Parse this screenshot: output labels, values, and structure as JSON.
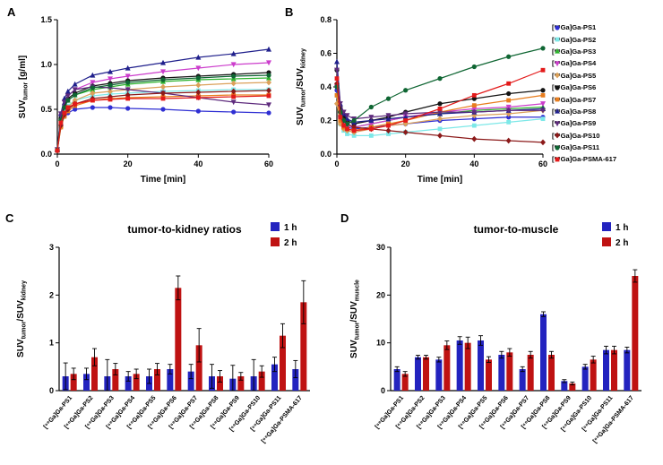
{
  "panel_labels": [
    "A",
    "B",
    "C",
    "D"
  ],
  "chart_data": [
    {
      "panel": "A",
      "type": "line",
      "xlabel": "Time [min]",
      "ylabel_parts": [
        {
          "t": "SUV"
        },
        {
          "t": "tumor",
          "sub": true
        },
        {
          "t": " [g/ml]"
        }
      ],
      "xlim": [
        0,
        60
      ],
      "ylim": [
        0,
        1.5
      ],
      "xticks": [
        0,
        20,
        40,
        60
      ],
      "yticks": [
        0,
        0.5,
        1.0,
        1.5
      ],
      "ydec": 1,
      "x": [
        0,
        1,
        2,
        3,
        5,
        10,
        15,
        20,
        30,
        40,
        50,
        60
      ],
      "series": [
        {
          "name": "[⁶⁸Ga]Ga-PS1",
          "color": "#2f2fd3",
          "marker": "circle",
          "values": [
            0.04,
            0.33,
            0.42,
            0.46,
            0.5,
            0.52,
            0.52,
            0.51,
            0.5,
            0.48,
            0.47,
            0.46
          ]
        },
        {
          "name": "[⁶⁸Ga]Ga-PS2",
          "color": "#7de8e8",
          "marker": "square",
          "values": [
            0.04,
            0.35,
            0.48,
            0.54,
            0.6,
            0.65,
            0.67,
            0.68,
            0.7,
            0.71,
            0.72,
            0.72
          ]
        },
        {
          "name": "[⁶⁸Ga]Ga-PS3",
          "color": "#2db32d",
          "marker": "triangle",
          "values": [
            0.05,
            0.4,
            0.54,
            0.6,
            0.66,
            0.72,
            0.75,
            0.78,
            0.81,
            0.83,
            0.84,
            0.85
          ]
        },
        {
          "name": "[⁶⁸Ga]Ga-PS4",
          "color": "#cc3dcc",
          "marker": "triangle-down",
          "values": [
            0.05,
            0.42,
            0.58,
            0.65,
            0.72,
            0.8,
            0.84,
            0.87,
            0.92,
            0.96,
            1.0,
            1.02
          ]
        },
        {
          "name": "[⁶⁸Ga]Ga-PS5",
          "color": "#dba15a",
          "marker": "diamond",
          "values": [
            0.04,
            0.3,
            0.45,
            0.52,
            0.6,
            0.68,
            0.7,
            0.72,
            0.75,
            0.77,
            0.79,
            0.8
          ]
        },
        {
          "name": "[⁶⁸Ga]Ga-PS6",
          "color": "#141414",
          "marker": "circle",
          "values": [
            0.05,
            0.4,
            0.55,
            0.62,
            0.68,
            0.76,
            0.79,
            0.82,
            0.85,
            0.87,
            0.89,
            0.91
          ]
        },
        {
          "name": "[⁶⁸Ga]Ga-PS7",
          "color": "#e87d1e",
          "marker": "square",
          "values": [
            0.04,
            0.3,
            0.42,
            0.48,
            0.54,
            0.6,
            0.62,
            0.63,
            0.64,
            0.65,
            0.66,
            0.66
          ]
        },
        {
          "name": "[⁶⁸Ga]Ga-PS8",
          "color": "#20208c",
          "marker": "triangle",
          "values": [
            0.05,
            0.45,
            0.62,
            0.7,
            0.78,
            0.88,
            0.92,
            0.96,
            1.02,
            1.08,
            1.12,
            1.17
          ]
        },
        {
          "name": "[⁶⁸Ga]Ga-PS9",
          "color": "#5e2b7d",
          "marker": "triangle-down",
          "values": [
            0.05,
            0.45,
            0.58,
            0.65,
            0.72,
            0.75,
            0.74,
            0.72,
            0.68,
            0.63,
            0.58,
            0.55
          ]
        },
        {
          "name": "[⁶⁸Ga]Ga-PS10",
          "color": "#8c1a1a",
          "marker": "diamond",
          "values": [
            0.04,
            0.32,
            0.44,
            0.5,
            0.56,
            0.62,
            0.64,
            0.66,
            0.68,
            0.69,
            0.7,
            0.71
          ]
        },
        {
          "name": "[⁶⁸Ga]Ga-PS11",
          "color": "#0f6633",
          "marker": "circle",
          "values": [
            0.05,
            0.38,
            0.52,
            0.6,
            0.66,
            0.74,
            0.77,
            0.8,
            0.83,
            0.85,
            0.87,
            0.88
          ]
        },
        {
          "name": "[⁶⁸Ga]Ga-PSMA-617",
          "color": "#e31a1a",
          "marker": "square",
          "values": [
            0.04,
            0.35,
            0.46,
            0.52,
            0.56,
            0.6,
            0.61,
            0.62,
            0.62,
            0.63,
            0.64,
            0.65
          ]
        }
      ]
    },
    {
      "panel": "B",
      "type": "line",
      "xlabel": "Time [min]",
      "ylabel_parts": [
        {
          "t": "SUV"
        },
        {
          "t": "tumor",
          "sub": true
        },
        {
          "t": "/SUV"
        },
        {
          "t": "kidney",
          "sub": true
        }
      ],
      "xlim": [
        0,
        60
      ],
      "ylim": [
        0,
        0.8
      ],
      "xticks": [
        0,
        20,
        40,
        60
      ],
      "yticks": [
        0,
        0.2,
        0.4,
        0.6,
        0.8
      ],
      "ydec": 1,
      "legend_position": "right",
      "x": [
        0,
        1,
        2,
        3,
        5,
        10,
        15,
        20,
        30,
        40,
        50,
        60
      ],
      "series": [
        {
          "name": "[⁶⁸Ga]Ga-PS1",
          "color": "#2f2fd3",
          "marker": "circle",
          "values": [
            0.38,
            0.22,
            0.18,
            0.16,
            0.15,
            0.16,
            0.17,
            0.18,
            0.2,
            0.21,
            0.22,
            0.22
          ]
        },
        {
          "name": "[⁶⁸Ga]Ga-PS2",
          "color": "#7de8e8",
          "marker": "square",
          "values": [
            0.35,
            0.18,
            0.14,
            0.12,
            0.11,
            0.11,
            0.12,
            0.13,
            0.15,
            0.17,
            0.19,
            0.21
          ]
        },
        {
          "name": "[⁶⁸Ga]Ga-PS3",
          "color": "#2db32d",
          "marker": "triangle",
          "values": [
            0.42,
            0.24,
            0.19,
            0.17,
            0.16,
            0.18,
            0.2,
            0.22,
            0.24,
            0.26,
            0.27,
            0.28
          ]
        },
        {
          "name": "[⁶⁸Ga]Ga-PS4",
          "color": "#cc3dcc",
          "marker": "triangle-down",
          "values": [
            0.4,
            0.22,
            0.18,
            0.17,
            0.16,
            0.18,
            0.2,
            0.22,
            0.25,
            0.27,
            0.28,
            0.3
          ]
        },
        {
          "name": "[⁶⁸Ga]Ga-PS5",
          "color": "#dba15a",
          "marker": "diamond",
          "values": [
            0.3,
            0.18,
            0.15,
            0.14,
            0.13,
            0.15,
            0.17,
            0.18,
            0.21,
            0.23,
            0.24,
            0.26
          ]
        },
        {
          "name": "[⁶⁸Ga]Ga-PS6",
          "color": "#141414",
          "marker": "circle",
          "values": [
            0.5,
            0.28,
            0.22,
            0.2,
            0.18,
            0.2,
            0.22,
            0.25,
            0.3,
            0.33,
            0.36,
            0.38
          ]
        },
        {
          "name": "[⁶⁸Ga]Ga-PS7",
          "color": "#e87d1e",
          "marker": "square",
          "values": [
            0.35,
            0.2,
            0.16,
            0.15,
            0.14,
            0.16,
            0.18,
            0.2,
            0.25,
            0.29,
            0.32,
            0.35
          ]
        },
        {
          "name": "[⁶⁸Ga]Ga-PS8",
          "color": "#20208c",
          "marker": "triangle",
          "values": [
            0.55,
            0.3,
            0.24,
            0.21,
            0.19,
            0.2,
            0.21,
            0.22,
            0.24,
            0.25,
            0.26,
            0.27
          ]
        },
        {
          "name": "[⁶⁸Ga]Ga-PS9",
          "color": "#5e2b7d",
          "marker": "triangle-down",
          "values": [
            0.5,
            0.3,
            0.25,
            0.23,
            0.21,
            0.22,
            0.23,
            0.24,
            0.25,
            0.25,
            0.26,
            0.26
          ]
        },
        {
          "name": "[⁶⁸Ga]Ga-PS10",
          "color": "#8c1a1a",
          "marker": "diamond",
          "values": [
            0.42,
            0.25,
            0.2,
            0.18,
            0.16,
            0.15,
            0.14,
            0.13,
            0.11,
            0.09,
            0.08,
            0.07
          ]
        },
        {
          "name": "[⁶⁸Ga]Ga-PS11",
          "color": "#0f6633",
          "marker": "circle",
          "values": [
            0.4,
            0.25,
            0.2,
            0.18,
            0.2,
            0.28,
            0.33,
            0.38,
            0.45,
            0.52,
            0.58,
            0.63
          ]
        },
        {
          "name": "[⁶⁸Ga]Ga-PSMA-617",
          "color": "#e31a1a",
          "marker": "square",
          "values": [
            0.45,
            0.22,
            0.17,
            0.15,
            0.14,
            0.15,
            0.17,
            0.2,
            0.27,
            0.35,
            0.42,
            0.5
          ]
        }
      ]
    },
    {
      "panel": "C",
      "type": "bar",
      "title": "tumor-to-kidney ratios",
      "ylabel_parts": [
        {
          "t": "SUV"
        },
        {
          "t": "tumor",
          "sub": true
        },
        {
          "t": "/SUV"
        },
        {
          "t": "kidney",
          "sub": true
        }
      ],
      "ylim": [
        0,
        3
      ],
      "yticks": [
        0,
        1,
        2,
        3
      ],
      "ydec": 0,
      "categories": [
        "[⁶⁸Ga]Ga-PS1",
        "[⁶⁸Ga]Ga-PS2",
        "[⁶⁸Ga]Ga-PS3",
        "[⁶⁸Ga]Ga-PS4",
        "[⁶⁸Ga]Ga-PS5",
        "[⁶⁸Ga]Ga-PS6",
        "[⁶⁸Ga]Ga-PS7",
        "[⁶⁸Ga]Ga-PS8",
        "[⁶⁸Ga]Ga-PS9",
        "[⁶⁸Ga]Ga-PS10",
        "[⁶⁸Ga]Ga-PS11",
        "[⁶⁸Ga]Ga-PSMA-617"
      ],
      "series": [
        {
          "name": "1 h",
          "color": "#2323bf",
          "values": [
            0.3,
            0.35,
            0.3,
            0.3,
            0.3,
            0.45,
            0.4,
            0.3,
            0.25,
            0.3,
            0.55,
            0.45
          ],
          "errors": [
            0.28,
            0.12,
            0.35,
            0.1,
            0.15,
            0.1,
            0.15,
            0.25,
            0.28,
            0.35,
            0.15,
            0.18
          ]
        },
        {
          "name": "2 h",
          "color": "#bf1212",
          "values": [
            0.35,
            0.7,
            0.45,
            0.35,
            0.45,
            2.15,
            0.95,
            0.3,
            0.3,
            0.4,
            1.15,
            1.85
          ],
          "errors": [
            0.12,
            0.18,
            0.12,
            0.1,
            0.12,
            0.25,
            0.35,
            0.12,
            0.08,
            0.12,
            0.25,
            0.45
          ]
        }
      ]
    },
    {
      "panel": "D",
      "type": "bar",
      "title": "tumor-to-muscle",
      "ylabel_parts": [
        {
          "t": "SUV"
        },
        {
          "t": "tumor",
          "sub": true
        },
        {
          "t": "/SUV"
        },
        {
          "t": "muscle",
          "sub": true
        }
      ],
      "ylim": [
        0,
        30
      ],
      "yticks": [
        0,
        10,
        20,
        30
      ],
      "ydec": 0,
      "categories": [
        "[⁶⁸Ga]Ga-PS1",
        "[⁶⁸Ga]Ga-PS2",
        "[⁶⁸Ga]Ga-PS3",
        "[⁶⁸Ga]Ga-PS4",
        "[⁶⁸Ga]Ga-PS5",
        "[⁶⁸Ga]Ga-PS6",
        "[⁶⁸Ga]Ga-PS7",
        "[⁶⁸Ga]Ga-PS8",
        "[⁶⁸Ga]Ga-PS9",
        "[⁶⁸Ga]Ga-PS10",
        "[⁶⁸Ga]Ga-PS11",
        "[⁶⁸Ga]Ga-PSMA-617"
      ],
      "series": [
        {
          "name": "1 h",
          "color": "#2323bf",
          "values": [
            4.5,
            7.0,
            6.5,
            10.5,
            10.5,
            7.5,
            4.5,
            16.0,
            2.0,
            5.0,
            8.5,
            8.5
          ],
          "errors": [
            0.5,
            0.4,
            0.5,
            0.8,
            1.0,
            0.7,
            0.5,
            0.5,
            0.3,
            0.5,
            0.8,
            0.6
          ]
        },
        {
          "name": "2 h",
          "color": "#bf1212",
          "values": [
            3.5,
            7.0,
            9.5,
            10.0,
            6.5,
            8.0,
            7.5,
            7.5,
            1.5,
            6.5,
            8.5,
            24.0
          ],
          "errors": [
            0.5,
            0.4,
            0.9,
            1.2,
            0.6,
            0.8,
            0.7,
            0.7,
            0.3,
            0.7,
            0.8,
            1.3
          ]
        }
      ]
    }
  ]
}
